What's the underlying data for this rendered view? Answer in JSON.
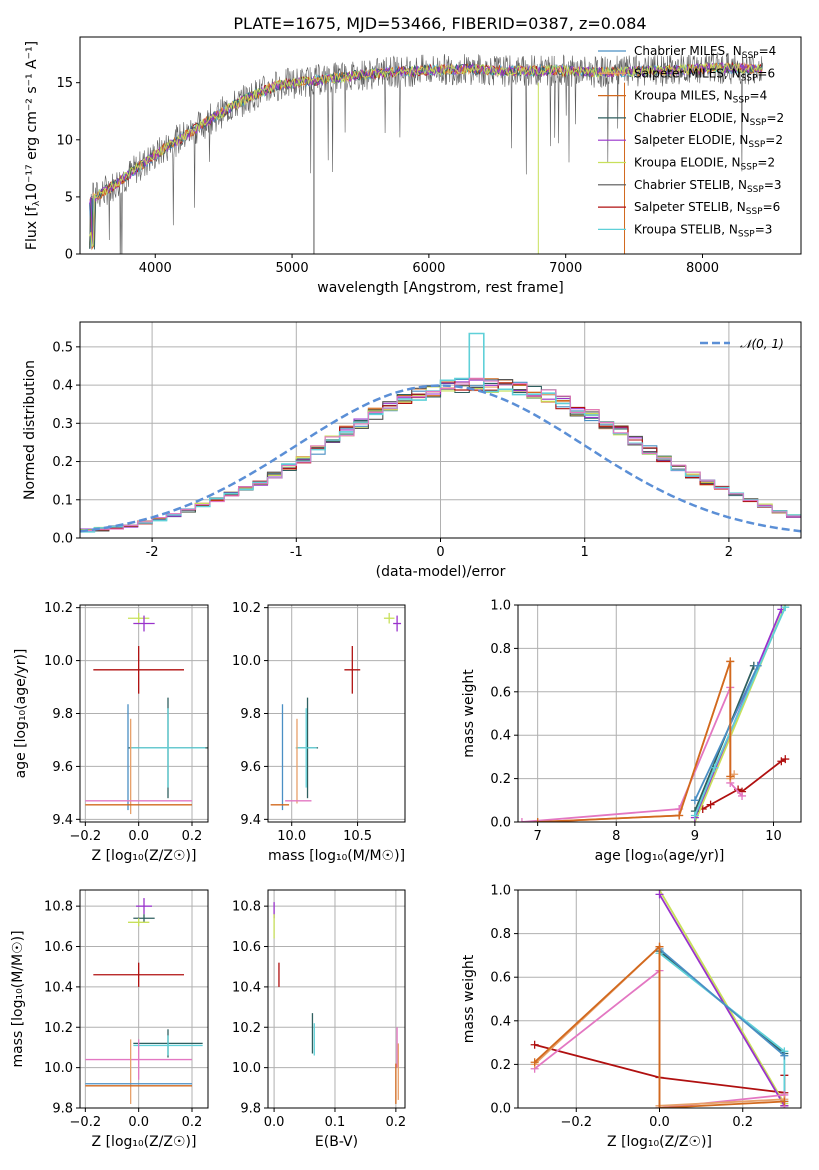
{
  "figure": {
    "title": "PLATE=1675, MJD=53466, FIBERID=0387, z=0.084"
  },
  "colors": {
    "chabrier_miles": "#4a8fc4",
    "salpeter_miles": "#e7a06a",
    "kroupa_miles": "#d2691e",
    "chabrier_elodie": "#2f5f5f",
    "salpeter_elodie": "#9932cc",
    "kroupa_elodie": "#c8e05a",
    "chabrier_stelib": "#555555",
    "salpeter_stelib": "#b01010",
    "kroupa_stelib": "#5fd0d8",
    "pink": "#e377c2",
    "normal_fit": "#5b8fd6"
  },
  "chart_data": [
    {
      "id": "spectrum",
      "type": "line",
      "xlabel": "wavelength [Angstrom, rest frame]",
      "ylabel_main": "Flux [f",
      "ylabel_sub": "λ",
      "ylabel_tail": "10⁻¹⁷ erg cm⁻² s⁻¹ A⁻¹]",
      "xlim": [
        3450,
        8720
      ],
      "ylim": [
        0,
        19
      ],
      "xticks": [
        4000,
        5000,
        6000,
        7000,
        8000
      ],
      "yticks": [
        0,
        5,
        10,
        15
      ],
      "legend_position": "right",
      "legend": [
        {
          "label": "Chabrier MILES, N",
          "sub": "SSP",
          "tail": "=4",
          "color": "#4a8fc4"
        },
        {
          "label": "Salpeter MILES, N",
          "sub": "SSP",
          "tail": "=6",
          "color": "#e7a06a"
        },
        {
          "label": "Kroupa MILES, N",
          "sub": "SSP",
          "tail": "=4",
          "color": "#d2691e"
        },
        {
          "label": "Chabrier ELODIE, N",
          "sub": "SSP",
          "tail": "=2",
          "color": "#2f5f5f"
        },
        {
          "label": "Salpeter ELODIE, N",
          "sub": "SSP",
          "tail": "=2",
          "color": "#9932cc"
        },
        {
          "label": "Kroupa ELODIE, N",
          "sub": "SSP",
          "tail": "=2",
          "color": "#c8e05a"
        },
        {
          "label": "Chabrier STELIB, N",
          "sub": "SSP",
          "tail": "=3",
          "color": "#555555"
        },
        {
          "label": "Salpeter STELIB, N",
          "sub": "SSP",
          "tail": "=6",
          "color": "#b01010"
        },
        {
          "label": "Kroupa STELIB, N",
          "sub": "SSP",
          "tail": "=3",
          "color": "#5fd0d8"
        }
      ],
      "continuum": [
        [
          3500,
          4.6
        ],
        [
          3700,
          6.0
        ],
        [
          3900,
          7.8
        ],
        [
          4100,
          9.5
        ],
        [
          4300,
          11.0
        ],
        [
          4500,
          12.5
        ],
        [
          4700,
          13.8
        ],
        [
          4900,
          14.8
        ],
        [
          5100,
          15.1
        ],
        [
          5300,
          15.4
        ],
        [
          5500,
          15.7
        ],
        [
          5700,
          15.9
        ],
        [
          6000,
          16.1
        ],
        [
          6300,
          16.2
        ],
        [
          6600,
          16.0
        ],
        [
          6900,
          16.1
        ],
        [
          7200,
          15.9
        ],
        [
          7500,
          16.0
        ],
        [
          7800,
          16.1
        ],
        [
          8100,
          16.3
        ],
        [
          8400,
          16.2
        ]
      ]
    },
    {
      "id": "residuals",
      "type": "bar",
      "xlabel": "(data-model)/error",
      "ylabel": "Normed distribution",
      "xlim": [
        -2.5,
        2.5
      ],
      "ylim": [
        0,
        0.565
      ],
      "xticks": [
        -2,
        -1,
        0,
        1,
        2
      ],
      "yticks": [
        0.0,
        0.1,
        0.2,
        0.3,
        0.4,
        0.5
      ],
      "bin_edges_start": -2.5,
      "bin_width": 0.1,
      "base_hist": [
        0.02,
        0.023,
        0.028,
        0.033,
        0.04,
        0.05,
        0.06,
        0.072,
        0.086,
        0.1,
        0.115,
        0.13,
        0.145,
        0.165,
        0.185,
        0.205,
        0.23,
        0.255,
        0.28,
        0.3,
        0.325,
        0.345,
        0.36,
        0.375,
        0.385,
        0.395,
        0.4,
        0.405,
        0.4,
        0.395,
        0.39,
        0.38,
        0.37,
        0.355,
        0.335,
        0.32,
        0.3,
        0.28,
        0.255,
        0.23,
        0.205,
        0.185,
        0.165,
        0.145,
        0.13,
        0.115,
        0.1,
        0.085,
        0.07,
        0.058
      ],
      "legend_label": "𝒩(0, 1)"
    },
    {
      "id": "age_vs_Z",
      "type": "scatter",
      "xlabel": "Z [log₁₀(Z/Z☉)]",
      "ylabel": "age  [log₁₀(age/yr)]",
      "xlim": [
        -0.22,
        0.26
      ],
      "ylim": [
        9.39,
        10.21
      ],
      "xticks": [
        -0.2,
        0.0,
        0.2
      ],
      "yticks": [
        9.4,
        9.6,
        9.8,
        10.0,
        10.2
      ],
      "points": [
        {
          "x": 0.0,
          "y": 10.16,
          "ex": 0.04,
          "ey": 0.02,
          "color": "#c8e05a"
        },
        {
          "x": 0.02,
          "y": 10.14,
          "ex": 0.04,
          "ey": 0.03,
          "color": "#9932cc"
        },
        {
          "x": 0.0,
          "y": 9.965,
          "ex": 0.17,
          "ey": 0.09,
          "color": "#b01010"
        },
        {
          "x": 0.11,
          "y": 9.67,
          "ex": 0.15,
          "ey": 0.19,
          "color": "#2f5f5f"
        },
        {
          "x": 0.11,
          "y": 9.67,
          "ex": 0.14,
          "ey": 0.15,
          "color": "#5fd0d8"
        },
        {
          "x": -0.04,
          "y": 9.635,
          "ex": 0.0,
          "ey": 0.2,
          "color": "#4a8fc4"
        },
        {
          "x": -0.03,
          "y": 9.6,
          "ex": 0.0,
          "ey": 0.18,
          "color": "#e7a06a"
        },
        {
          "x": 0.0,
          "y": 9.47,
          "ex": 0.2,
          "ey": 0.0,
          "color": "#e377c2"
        },
        {
          "x": 0.0,
          "y": 9.455,
          "ex": 0.2,
          "ey": 0.0,
          "color": "#d2691e"
        }
      ]
    },
    {
      "id": "age_vs_mass",
      "type": "scatter",
      "xlabel": "mass [log₁₀(M/M☉)]",
      "ylabel": "",
      "xlim": [
        9.82,
        10.86
      ],
      "ylim": [
        9.39,
        10.21
      ],
      "xticks": [
        10.0,
        10.5
      ],
      "yticks": [
        9.4,
        9.6,
        9.8,
        10.0,
        10.2
      ],
      "points": [
        {
          "x": 10.74,
          "y": 10.16,
          "ex": 0.04,
          "ey": 0.02,
          "color": "#c8e05a"
        },
        {
          "x": 10.8,
          "y": 10.14,
          "ex": 0.03,
          "ey": 0.03,
          "color": "#9932cc"
        },
        {
          "x": 10.46,
          "y": 9.965,
          "ex": 0.06,
          "ey": 0.09,
          "color": "#b01010"
        },
        {
          "x": 10.12,
          "y": 9.67,
          "ex": 0.08,
          "ey": 0.19,
          "color": "#2f5f5f"
        },
        {
          "x": 10.11,
          "y": 9.67,
          "ex": 0.08,
          "ey": 0.15,
          "color": "#5fd0d8"
        },
        {
          "x": 10.04,
          "y": 9.62,
          "ex": 0.0,
          "ey": 0.16,
          "color": "#e7a06a"
        },
        {
          "x": 9.93,
          "y": 9.635,
          "ex": 0.0,
          "ey": 0.2,
          "color": "#4a8fc4"
        },
        {
          "x": 10.05,
          "y": 9.47,
          "ex": 0.1,
          "ey": 0.0,
          "color": "#e377c2"
        },
        {
          "x": 9.91,
          "y": 9.455,
          "ex": 0.07,
          "ey": 0.0,
          "color": "#d2691e"
        }
      ]
    },
    {
      "id": "weight_vs_age",
      "type": "line",
      "xlabel": "age  [log₁₀(age/yr)]",
      "ylabel": "mass weight",
      "xlim": [
        6.75,
        10.35
      ],
      "ylim": [
        0,
        1
      ],
      "xticks": [
        7,
        8,
        9,
        10
      ],
      "yticks": [
        0.0,
        0.2,
        0.4,
        0.6,
        0.8,
        1.0
      ],
      "series": [
        {
          "color": "#b01010",
          "points": [
            [
              9.1,
              0.06
            ],
            [
              9.2,
              0.08
            ],
            [
              9.55,
              0.15
            ],
            [
              9.6,
              0.14
            ],
            [
              10.1,
              0.28
            ],
            [
              10.15,
              0.29
            ]
          ]
        },
        {
          "color": "#c8e05a",
          "points": [
            [
              9.0,
              0.0
            ],
            [
              10.15,
              1.0
            ]
          ]
        },
        {
          "color": "#9932cc",
          "points": [
            [
              9.0,
              0.02
            ],
            [
              10.1,
              0.98
            ]
          ]
        },
        {
          "color": "#2f5f5f",
          "points": [
            [
              9.0,
              0.05
            ],
            [
              9.75,
              0.72
            ]
          ]
        },
        {
          "color": "#5fd0d8",
          "points": [
            [
              9.0,
              0.03
            ],
            [
              9.25,
              0.25
            ],
            [
              10.15,
              0.99
            ]
          ]
        },
        {
          "color": "#4a8fc4",
          "points": [
            [
              9.0,
              0.1
            ],
            [
              9.8,
              0.72
            ]
          ]
        },
        {
          "color": "#e377c2",
          "points": [
            [
              6.8,
              0.0
            ],
            [
              8.8,
              0.06
            ],
            [
              9.45,
              0.62
            ],
            [
              9.45,
              0.18
            ],
            [
              9.6,
              0.12
            ]
          ]
        },
        {
          "color": "#e7a06a",
          "points": [
            [
              7.0,
              0.0
            ],
            [
              8.8,
              0.03
            ],
            [
              9.45,
              0.74
            ],
            [
              9.45,
              0.2
            ],
            [
              9.5,
              0.22
            ]
          ]
        },
        {
          "color": "#d2691e",
          "points": [
            [
              7.0,
              0.0
            ],
            [
              8.8,
              0.03
            ],
            [
              9.45,
              0.74
            ],
            [
              9.45,
              0.21
            ]
          ]
        }
      ]
    },
    {
      "id": "mass_vs_Z",
      "type": "scatter",
      "xlabel": "Z [log₁₀(Z/Z☉)]",
      "ylabel": "mass [log₁₀(M/M☉)]",
      "xlim": [
        -0.22,
        0.26
      ],
      "ylim": [
        9.8,
        10.88
      ],
      "xticks": [
        -0.2,
        0.0,
        0.2
      ],
      "yticks": [
        9.8,
        10.0,
        10.2,
        10.4,
        10.6,
        10.8
      ],
      "points": [
        {
          "x": 0.02,
          "y": 10.8,
          "ex": 0.03,
          "ey": 0.04,
          "color": "#9932cc"
        },
        {
          "x": 0.02,
          "y": 10.74,
          "ex": 0.04,
          "ey": 0.02,
          "color": "#2f5f5f"
        },
        {
          "x": 0.0,
          "y": 10.72,
          "ex": 0.04,
          "ey": 0.02,
          "color": "#c8e05a"
        },
        {
          "x": 0.0,
          "y": 10.46,
          "ex": 0.17,
          "ey": 0.06,
          "color": "#b01010"
        },
        {
          "x": 0.11,
          "y": 10.12,
          "ex": 0.13,
          "ey": 0.07,
          "color": "#2f5f5f"
        },
        {
          "x": 0.11,
          "y": 10.11,
          "ex": 0.13,
          "ey": 0.05,
          "color": "#5fd0d8"
        },
        {
          "x": 0.0,
          "y": 10.04,
          "ex": 0.2,
          "ey": 0.1,
          "color": "#e377c2"
        },
        {
          "x": -0.03,
          "y": 9.98,
          "ex": 0.0,
          "ey": 0.16,
          "color": "#e7a06a"
        },
        {
          "x": 0.0,
          "y": 9.92,
          "ex": 0.2,
          "ey": 0.0,
          "color": "#4a8fc4"
        },
        {
          "x": 0.0,
          "y": 9.91,
          "ex": 0.2,
          "ey": 0.0,
          "color": "#d2691e"
        }
      ]
    },
    {
      "id": "mass_vs_EBV",
      "type": "scatter",
      "xlabel": "E(B-V)",
      "ylabel": "",
      "xlim": [
        -0.01,
        0.215
      ],
      "ylim": [
        9.8,
        10.88
      ],
      "xticks": [
        0.0,
        0.1,
        0.2
      ],
      "yticks": [
        9.8,
        10.0,
        10.2,
        10.4,
        10.6,
        10.8
      ],
      "points": [
        {
          "x": 0.0,
          "y": 10.78,
          "ex": 0.0,
          "ey": 0.04,
          "color": "#9932cc"
        },
        {
          "x": 0.0,
          "y": 10.7,
          "ex": 0.0,
          "ey": 0.06,
          "color": "#c8e05a"
        },
        {
          "x": 0.008,
          "y": 10.46,
          "ex": 0.0,
          "ey": 0.06,
          "color": "#b01010"
        },
        {
          "x": 0.063,
          "y": 10.17,
          "ex": 0.0,
          "ey": 0.1,
          "color": "#2f5f5f"
        },
        {
          "x": 0.066,
          "y": 10.14,
          "ex": 0.0,
          "ey": 0.08,
          "color": "#5fd0d8"
        },
        {
          "x": 0.202,
          "y": 10.1,
          "ex": 0.0,
          "ey": 0.1,
          "color": "#e377c2"
        },
        {
          "x": 0.204,
          "y": 9.98,
          "ex": 0.0,
          "ey": 0.14,
          "color": "#e7a06a"
        },
        {
          "x": 0.2,
          "y": 9.92,
          "ex": 0.0,
          "ey": 0.1,
          "color": "#d2691e"
        }
      ]
    },
    {
      "id": "weight_vs_Z",
      "type": "line",
      "xlabel": "Z [log₁₀(Z/Z☉)]",
      "ylabel": "mass weight",
      "xlim": [
        -0.34,
        0.34
      ],
      "ylim": [
        0,
        1
      ],
      "xticks": [
        -0.2,
        0.0,
        0.2
      ],
      "yticks": [
        0.0,
        0.2,
        0.4,
        0.6,
        0.8,
        1.0
      ],
      "series": [
        {
          "color": "#b01010",
          "points": [
            [
              -0.3,
              0.29
            ],
            [
              0.0,
              0.14
            ],
            [
              0.3,
              0.07
            ],
            [
              0.3,
              0.15
            ],
            [
              0.3,
              0.01
            ]
          ]
        },
        {
          "color": "#c8e05a",
          "points": [
            [
              0.0,
              1.0
            ],
            [
              0.3,
              0.02
            ]
          ]
        },
        {
          "color": "#9932cc",
          "points": [
            [
              0.0,
              0.98
            ],
            [
              0.3,
              0.01
            ]
          ]
        },
        {
          "color": "#2f5f5f",
          "points": [
            [
              0.0,
              0.72
            ],
            [
              0.3,
              0.25
            ]
          ]
        },
        {
          "color": "#5fd0d8",
          "points": [
            [
              0.0,
              0.71
            ],
            [
              0.3,
              0.26
            ],
            [
              0.3,
              0.03
            ]
          ]
        },
        {
          "color": "#4a8fc4",
          "points": [
            [
              0.0,
              0.73
            ],
            [
              0.3,
              0.24
            ]
          ]
        },
        {
          "color": "#e377c2",
          "points": [
            [
              -0.3,
              0.18
            ],
            [
              0.0,
              0.63
            ],
            [
              0.0,
              0.0
            ],
            [
              0.3,
              0.06
            ],
            [
              0.3,
              0.0
            ]
          ]
        },
        {
          "color": "#e7a06a",
          "points": [
            [
              -0.3,
              0.2
            ],
            [
              0.0,
              0.74
            ],
            [
              0.0,
              0.01
            ],
            [
              0.3,
              0.04
            ]
          ]
        },
        {
          "color": "#d2691e",
          "points": [
            [
              -0.3,
              0.21
            ],
            [
              0.0,
              0.74
            ],
            [
              0.0,
              0.0
            ],
            [
              0.3,
              0.03
            ]
          ]
        }
      ]
    }
  ]
}
